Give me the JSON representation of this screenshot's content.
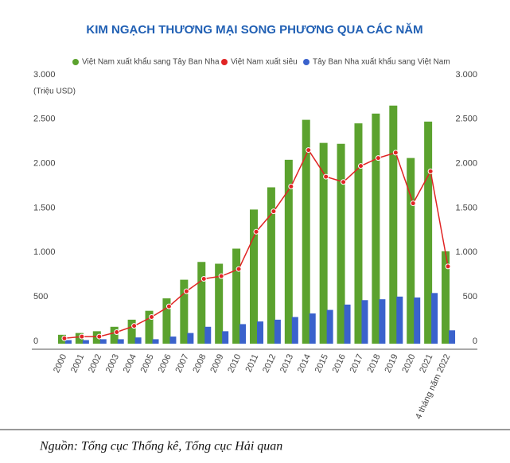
{
  "chart_data": {
    "type": "bar_line",
    "title": "KIM NGẠCH THƯƠNG MẠI SONG PHƯƠNG QUA CÁC NĂM",
    "y_label": "(Triệu USD)",
    "categories": [
      "2000",
      "2001",
      "2002",
      "2003",
      "2004",
      "2005",
      "2006",
      "2007",
      "2008",
      "2009",
      "2010",
      "2011",
      "2012",
      "2013",
      "2014",
      "2015",
      "2016",
      "2017",
      "2018",
      "2019",
      "2020",
      "2021",
      "4 tháng năm 2022"
    ],
    "series": [
      {
        "name": "Việt Nam xuất khẩu sang Tây Ban Nha",
        "color": "#5ba22e",
        "kind": "bar",
        "values": [
          100,
          120,
          140,
          190,
          270,
          370,
          510,
          720,
          920,
          900,
          1070,
          1510,
          1760,
          2070,
          2520,
          2260,
          2250,
          2480,
          2590,
          2680,
          2090,
          2500,
          1040
        ]
      },
      {
        "name": "Việt Nam xuất siêu",
        "color": "#e02424",
        "kind": "line",
        "values": [
          60,
          80,
          80,
          130,
          200,
          300,
          420,
          590,
          730,
          760,
          840,
          1260,
          1490,
          1770,
          2180,
          1880,
          1820,
          2000,
          2090,
          2150,
          1580,
          1940,
          870
        ]
      },
      {
        "name": "Tây Ban Nha xuất khẩu sang Việt Nam",
        "color": "#3a62cc",
        "kind": "bar",
        "values": [
          40,
          40,
          50,
          50,
          70,
          50,
          80,
          120,
          190,
          140,
          220,
          250,
          270,
          300,
          340,
          380,
          440,
          490,
          500,
          530,
          520,
          570,
          150
        ]
      }
    ],
    "ylim": [
      0,
      3000
    ],
    "yticks": [
      0,
      500,
      {
        "value": 1000,
        "label": "1.000"
      },
      {
        "value": 1500,
        "label": "1.500"
      },
      {
        "value": 2000,
        "label": "2.000"
      },
      {
        "value": 2500,
        "label": "2.500"
      },
      {
        "value": 3000,
        "label": "3.000"
      }
    ],
    "y2lim": [
      0,
      3000
    ],
    "y2ticks": [
      0,
      500,
      {
        "value": 1000,
        "label": "1.000"
      },
      {
        "value": 1500,
        "label": "1.500"
      },
      {
        "value": 2000,
        "label": "2.000"
      },
      {
        "value": 2500,
        "label": "2.500"
      },
      {
        "value": 3000,
        "label": "3.000"
      }
    ],
    "legend": "top"
  },
  "source": "Nguồn: Tổng cục Thống kê, Tổng cục Hải quan"
}
